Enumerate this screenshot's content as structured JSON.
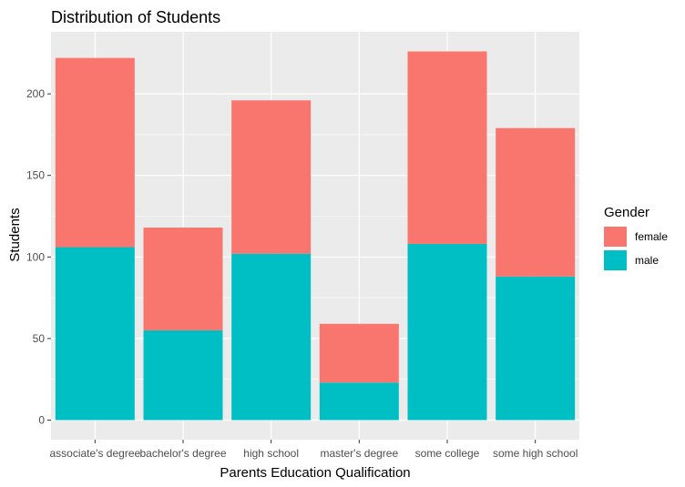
{
  "chart_data": {
    "type": "bar",
    "stacked": true,
    "title": "Distribution of Students",
    "xlabel": "Parents Education Qualification",
    "ylabel": "Students",
    "categories": [
      "associate's degree",
      "bachelor's degree",
      "high school",
      "master's degree",
      "some college",
      "some high school"
    ],
    "series": [
      {
        "name": "female",
        "color": "#F8766D",
        "values": [
          116,
          63,
          94,
          36,
          118,
          91
        ]
      },
      {
        "name": "male",
        "color": "#00BFC4",
        "values": [
          106,
          55,
          102,
          23,
          108,
          88
        ]
      }
    ],
    "ylim": [
      -12,
      238
    ],
    "yticks": [
      0,
      50,
      100,
      150,
      200
    ],
    "legend": {
      "title": "Gender",
      "position": "right"
    },
    "grid": true,
    "panel_background": "#EBEBEB"
  }
}
